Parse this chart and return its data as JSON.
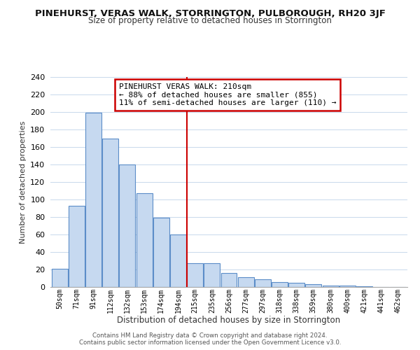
{
  "title": "PINEHURST, VERAS WALK, STORRINGTON, PULBOROUGH, RH20 3JF",
  "subtitle": "Size of property relative to detached houses in Storrington",
  "xlabel": "Distribution of detached houses by size in Storrington",
  "ylabel": "Number of detached properties",
  "bar_labels": [
    "50sqm",
    "71sqm",
    "91sqm",
    "112sqm",
    "132sqm",
    "153sqm",
    "174sqm",
    "194sqm",
    "215sqm",
    "235sqm",
    "256sqm",
    "277sqm",
    "297sqm",
    "318sqm",
    "338sqm",
    "359sqm",
    "380sqm",
    "400sqm",
    "421sqm",
    "441sqm",
    "462sqm"
  ],
  "bar_values": [
    21,
    93,
    199,
    170,
    140,
    107,
    79,
    60,
    27,
    27,
    16,
    11,
    9,
    6,
    5,
    3,
    2,
    2,
    1,
    0,
    0
  ],
  "bar_color": "#c6d9f0",
  "bar_edge_color": "#5b8dc8",
  "vline_x_index": 8,
  "vline_color": "#cc0000",
  "ylim_max": 240,
  "yticks": [
    0,
    20,
    40,
    60,
    80,
    100,
    120,
    140,
    160,
    180,
    200,
    220,
    240
  ],
  "annotation_title": "PINEHURST VERAS WALK: 210sqm",
  "annotation_line1": "← 88% of detached houses are smaller (855)",
  "annotation_line2": "11% of semi-detached houses are larger (110) →",
  "annotation_box_color": "#ffffff",
  "annotation_box_edge": "#cc0000",
  "footer_line1": "Contains HM Land Registry data © Crown copyright and database right 2024.",
  "footer_line2": "Contains public sector information licensed under the Open Government Licence v3.0.",
  "bg_color": "#ffffff",
  "grid_color": "#c8d8ec"
}
